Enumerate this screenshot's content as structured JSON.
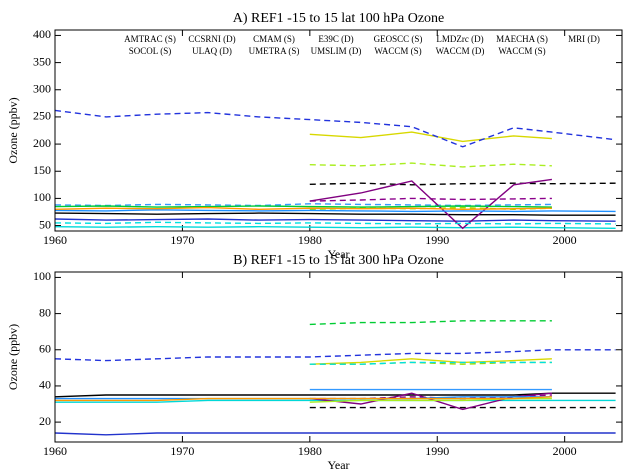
{
  "chart_data": [
    {
      "type": "line",
      "title": "A) REF1 -15 to 15 lat 100 hPa Ozone",
      "xlabel": "Year",
      "ylabel": "Ozone (ppbv)",
      "xlim": [
        1960,
        2004.5
      ],
      "ylim": [
        40,
        410
      ],
      "xticks": [
        1960,
        1970,
        1980,
        1990,
        2000
      ],
      "yticks": [
        50,
        100,
        150,
        200,
        250,
        300,
        350,
        400
      ],
      "x": [
        1960,
        1964,
        1968,
        1972,
        1976,
        1980,
        1984,
        1988,
        1992,
        1996,
        1999,
        2004
      ],
      "series": [
        {
          "name": "AMTRAC (S)",
          "color": "#000000",
          "dash": false,
          "values": [
            73,
            72,
            71,
            72,
            73,
            72,
            71,
            71,
            70,
            70,
            69,
            69
          ]
        },
        {
          "name": "CCSRNI (D)",
          "color": "#8b008b",
          "dash": true,
          "values": [
            null,
            null,
            null,
            null,
            null,
            95,
            97,
            100,
            98,
            99,
            100,
            null
          ]
        },
        {
          "name": "CMAM (S)",
          "color": "#2233cc",
          "dash": false,
          "values": [
            62,
            60,
            61,
            62,
            60,
            61,
            60,
            59,
            58,
            60,
            59,
            58
          ]
        },
        {
          "name": "E39C (D)",
          "color": "#3399ff",
          "dash": true,
          "values": [
            88,
            87,
            89,
            88,
            87,
            90,
            89,
            88,
            87,
            88,
            89,
            null
          ]
        },
        {
          "name": "GEOSCC (S)",
          "color": "#00d8d8",
          "dash": false,
          "values": [
            48,
            47,
            48,
            47,
            48,
            47,
            46,
            47,
            46,
            47,
            46,
            45
          ]
        },
        {
          "name": "LMDZrc (D)",
          "color": "#99dd00",
          "dash": true,
          "values": [
            null,
            null,
            null,
            null,
            null,
            80,
            82,
            81,
            83,
            80,
            82,
            null
          ]
        },
        {
          "name": "MAECHA (S)",
          "color": "#d8d800",
          "dash": false,
          "values": [
            null,
            null,
            null,
            null,
            null,
            218,
            212,
            222,
            205,
            215,
            210,
            null
          ]
        },
        {
          "name": "MRI (D)",
          "color": "#000000",
          "dash": true,
          "values": [
            null,
            null,
            null,
            null,
            null,
            126,
            128,
            125,
            127,
            128,
            127,
            128
          ]
        },
        {
          "name": "SOCOL (S)",
          "color": "#800080",
          "dash": false,
          "values": [
            null,
            null,
            null,
            null,
            null,
            95,
            110,
            132,
            45,
            125,
            135,
            null
          ]
        },
        {
          "name": "ULAQ (D)",
          "color": "#2233dd",
          "dash": true,
          "values": [
            262,
            250,
            255,
            258,
            250,
            245,
            240,
            232,
            195,
            230,
            222,
            208
          ]
        },
        {
          "name": "UMETRA (S)",
          "color": "#1e90ff",
          "dash": false,
          "values": [
            78,
            77,
            79,
            78,
            77,
            78,
            77,
            76,
            77,
            76,
            77,
            76
          ]
        },
        {
          "name": "UMSLIM (D)",
          "color": "#00e0e0",
          "dash": true,
          "values": [
            55,
            54,
            56,
            55,
            54,
            55,
            54,
            53,
            54,
            53,
            54,
            53
          ]
        },
        {
          "name": "WACCM (S)",
          "color": "#00cc33",
          "dash": false,
          "values": [
            85,
            86,
            84,
            85,
            86,
            85,
            84,
            85,
            86,
            85,
            84,
            null
          ]
        },
        {
          "name": "WACCM (D)",
          "color": "#aaee22",
          "dash": true,
          "values": [
            null,
            null,
            null,
            null,
            null,
            162,
            160,
            165,
            158,
            163,
            160,
            null
          ]
        },
        {
          "name": "WACCM (S)",
          "color": "#ff9900",
          "dash": false,
          "values": [
            80,
            82,
            81,
            83,
            80,
            82,
            81,
            82,
            80,
            81,
            82,
            null
          ]
        }
      ]
    },
    {
      "type": "line",
      "title": "B) REF1 -15 to 15 lat 300 hPa Ozone",
      "xlabel": "Year",
      "ylabel": "Ozone (ppbv)",
      "xlim": [
        1960,
        2004.5
      ],
      "ylim": [
        9,
        103
      ],
      "xticks": [
        1960,
        1970,
        1980,
        1990,
        2000
      ],
      "yticks": [
        20,
        40,
        60,
        80,
        100
      ],
      "x": [
        1960,
        1964,
        1968,
        1972,
        1976,
        1980,
        1984,
        1988,
        1992,
        1996,
        1999,
        2004
      ],
      "series": [
        {
          "color": "#000000",
          "dash": false,
          "values": [
            34,
            35,
            35,
            35,
            35,
            35,
            35,
            35,
            35,
            35,
            36,
            36
          ]
        },
        {
          "color": "#8b008b",
          "dash": true,
          "values": [
            null,
            null,
            null,
            null,
            null,
            33,
            33,
            34,
            33,
            34,
            35,
            null
          ]
        },
        {
          "color": "#2233cc",
          "dash": false,
          "values": [
            14,
            13,
            14,
            14,
            14,
            14,
            14,
            14,
            14,
            14,
            14,
            14
          ]
        },
        {
          "color": "#3399ff",
          "dash": false,
          "values": [
            null,
            null,
            null,
            null,
            null,
            38,
            38,
            38,
            38,
            38,
            38,
            null
          ]
        },
        {
          "color": "#00d8d8",
          "dash": false,
          "values": [
            31,
            31,
            31,
            32,
            32,
            32,
            32,
            32,
            32,
            32,
            32,
            32
          ]
        },
        {
          "color": "#99dd00",
          "dash": true,
          "values": [
            null,
            null,
            null,
            null,
            null,
            52,
            52,
            53,
            52,
            53,
            53,
            null
          ]
        },
        {
          "color": "#d8d800",
          "dash": false,
          "values": [
            null,
            null,
            null,
            null,
            null,
            52,
            53,
            55,
            53,
            54,
            55,
            null
          ]
        },
        {
          "color": "#000000",
          "dash": true,
          "values": [
            null,
            null,
            null,
            null,
            null,
            28,
            28,
            28,
            28,
            28,
            28,
            28
          ]
        },
        {
          "color": "#800080",
          "dash": false,
          "values": [
            null,
            null,
            null,
            null,
            null,
            33,
            30,
            36,
            27,
            34,
            36,
            null
          ]
        },
        {
          "color": "#2233dd",
          "dash": true,
          "values": [
            55,
            54,
            55,
            56,
            56,
            56,
            57,
            58,
            58,
            59,
            60,
            60
          ]
        },
        {
          "color": "#1e90ff",
          "dash": false,
          "values": [
            33,
            33,
            33,
            33,
            33,
            33,
            33,
            33,
            34,
            34,
            34,
            null
          ]
        },
        {
          "color": "#00e0e0",
          "dash": true,
          "values": [
            null,
            null,
            null,
            null,
            null,
            52,
            52,
            53,
            53,
            53,
            53,
            null
          ]
        },
        {
          "color": "#00cc33",
          "dash": true,
          "values": [
            null,
            null,
            null,
            null,
            null,
            74,
            75,
            75,
            76,
            76,
            76,
            null
          ]
        },
        {
          "color": "#aaee22",
          "dash": false,
          "values": [
            null,
            null,
            null,
            null,
            null,
            31,
            32,
            32,
            32,
            33,
            33,
            null
          ]
        },
        {
          "color": "#ff9900",
          "dash": false,
          "values": [
            32,
            32,
            32,
            33,
            33,
            33,
            33,
            33,
            33,
            33,
            34,
            null
          ]
        }
      ]
    }
  ]
}
